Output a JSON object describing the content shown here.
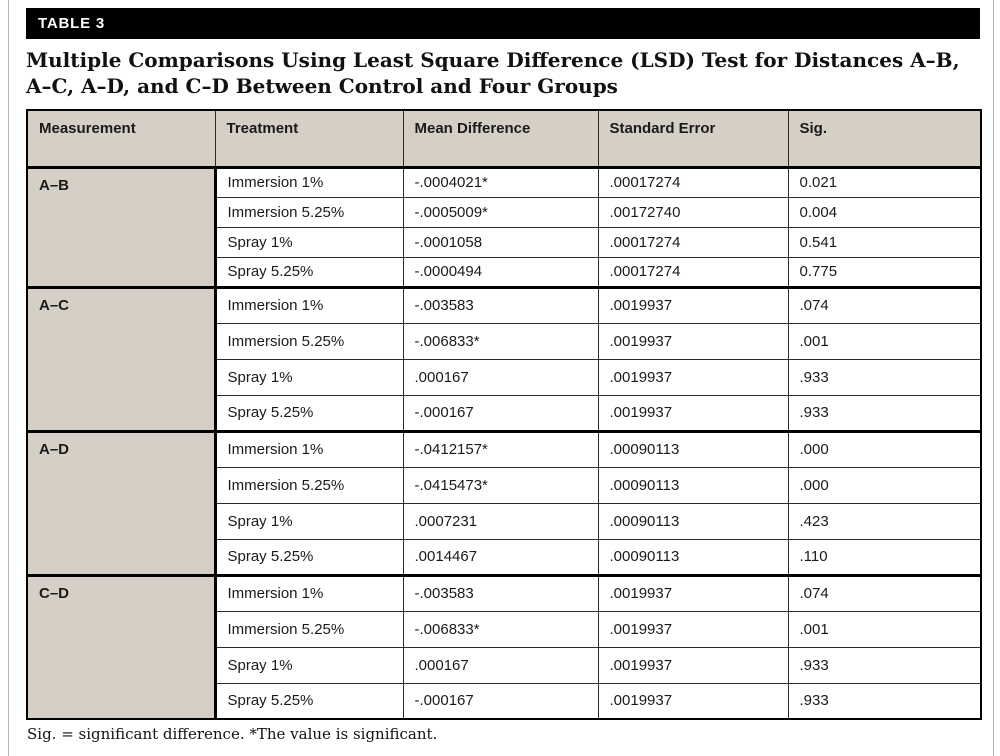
{
  "page": {
    "table_tag": "TABLE 3",
    "title": "Multiple Comparisons Using Least Square Difference (LSD) Test for Distances A–B, A–C, A–D, and C–D Between Control and Four Groups",
    "footnote": "Sig. = significant difference. *The value is significant."
  },
  "colors": {
    "tag_bar_bg": "#000000",
    "tag_bar_text": "#ffffff",
    "header_cell_bg": "#d6cfc5",
    "measurement_cell_bg": "#d6cfc5",
    "border_thick": "#000000",
    "border_thin": "#2a2a2a"
  },
  "table": {
    "columns": {
      "measurement": "Measurement",
      "treatment": "Treatment",
      "mean_difference": "Mean Difference",
      "standard_error": "Standard Error",
      "sig": "Sig."
    },
    "groups": [
      {
        "measurement": "A–B",
        "rows": [
          {
            "treatment": "Immersion 1%",
            "mean_difference": "-.0004021*",
            "standard_error": ".00017274",
            "sig": "0.021"
          },
          {
            "treatment": "Immersion 5.25%",
            "mean_difference": "-.0005009*",
            "standard_error": ".00172740",
            "sig": "0.004"
          },
          {
            "treatment": "Spray 1%",
            "mean_difference": "-.0001058",
            "standard_error": ".00017274",
            "sig": "0.541"
          },
          {
            "treatment": "Spray 5.25%",
            "mean_difference": "-.0000494",
            "standard_error": ".00017274",
            "sig": "0.775"
          }
        ]
      },
      {
        "measurement": "A–C",
        "rows": [
          {
            "treatment": "Immersion 1%",
            "mean_difference": "-.003583",
            "standard_error": ".0019937",
            "sig": ".074"
          },
          {
            "treatment": "Immersion 5.25%",
            "mean_difference": "-.006833*",
            "standard_error": ".0019937",
            "sig": ".001"
          },
          {
            "treatment": "Spray 1%",
            "mean_difference": ".000167",
            "standard_error": ".0019937",
            "sig": ".933"
          },
          {
            "treatment": "Spray 5.25%",
            "mean_difference": "-.000167",
            "standard_error": ".0019937",
            "sig": ".933"
          }
        ]
      },
      {
        "measurement": "A–D",
        "rows": [
          {
            "treatment": "Immersion 1%",
            "mean_difference": "-.0412157*",
            "standard_error": ".00090113",
            "sig": ".000"
          },
          {
            "treatment": "Immersion 5.25%",
            "mean_difference": "-.0415473*",
            "standard_error": ".00090113",
            "sig": ".000"
          },
          {
            "treatment": "Spray 1%",
            "mean_difference": ".0007231",
            "standard_error": ".00090113",
            "sig": ".423"
          },
          {
            "treatment": "Spray 5.25%",
            "mean_difference": ".0014467",
            "standard_error": ".00090113",
            "sig": ".110"
          }
        ]
      },
      {
        "measurement": "C–D",
        "rows": [
          {
            "treatment": "Immersion 1%",
            "mean_difference": "-.003583",
            "standard_error": ".0019937",
            "sig": ".074"
          },
          {
            "treatment": "Immersion 5.25%",
            "mean_difference": "-.006833*",
            "standard_error": ".0019937",
            "sig": ".001"
          },
          {
            "treatment": "Spray 1%",
            "mean_difference": ".000167",
            "standard_error": ".0019937",
            "sig": ".933"
          },
          {
            "treatment": "Spray 5.25%",
            "mean_difference": "-.000167",
            "standard_error": ".0019937",
            "sig": ".933"
          }
        ]
      }
    ]
  }
}
